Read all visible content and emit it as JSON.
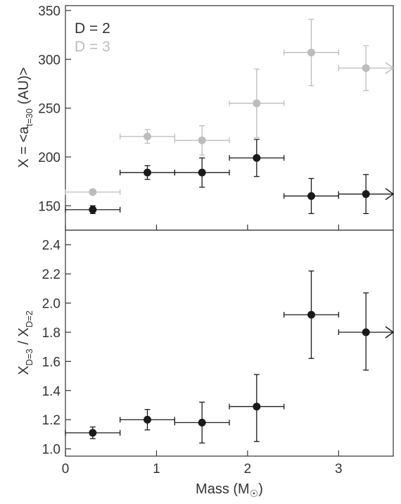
{
  "chart_data": [
    {
      "type": "scatter",
      "panel": "top",
      "xlabel": "",
      "ylabel_parts": {
        "main": "X = <a",
        "sub": "t=30",
        "tail": " (AU)>"
      },
      "ylabel": "X = <a_t=30 (AU)>",
      "xlim": [
        0,
        3.6
      ],
      "ylim": [
        125,
        355
      ],
      "yticks": [
        150,
        200,
        250,
        300,
        350
      ],
      "ytick_labels": [
        "150",
        "200",
        "250",
        "300",
        "350"
      ],
      "legend": {
        "placement": "top-left",
        "entries": [
          "D = 2",
          "D = 3"
        ]
      },
      "grid": false,
      "series": [
        {
          "name": "D = 2",
          "color": "#1a1a1a",
          "points": [
            {
              "x": 0.3,
              "xmin": 0.0,
              "xmax": 0.6,
              "y": 146,
              "ylo": 142,
              "yhi": 150
            },
            {
              "x": 0.9,
              "xmin": 0.6,
              "xmax": 1.2,
              "y": 184,
              "ylo": 177,
              "yhi": 191
            },
            {
              "x": 1.5,
              "xmin": 1.2,
              "xmax": 1.8,
              "y": 184,
              "ylo": 169,
              "yhi": 199
            },
            {
              "x": 2.1,
              "xmin": 1.8,
              "xmax": 2.4,
              "y": 199,
              "ylo": 180,
              "yhi": 218
            },
            {
              "x": 2.7,
              "xmin": 2.4,
              "xmax": 3.0,
              "y": 160,
              "ylo": 142,
              "yhi": 178
            },
            {
              "x": 3.3,
              "xmin": 3.0,
              "xmax": 3.6,
              "y": 162,
              "ylo": 142,
              "yhi": 182,
              "open_right": true
            }
          ]
        },
        {
          "name": "D = 3",
          "color": "#bcbcbc",
          "points": [
            {
              "x": 0.3,
              "xmin": 0.0,
              "xmax": 0.6,
              "y": 164,
              "ylo": 162,
              "yhi": 166
            },
            {
              "x": 0.9,
              "xmin": 0.6,
              "xmax": 1.2,
              "y": 221,
              "ylo": 214,
              "yhi": 228
            },
            {
              "x": 1.5,
              "xmin": 1.2,
              "xmax": 1.8,
              "y": 217,
              "ylo": 202,
              "yhi": 232
            },
            {
              "x": 2.1,
              "xmin": 1.8,
              "xmax": 2.4,
              "y": 255,
              "ylo": 220,
              "yhi": 290
            },
            {
              "x": 2.7,
              "xmin": 2.4,
              "xmax": 3.0,
              "y": 307,
              "ylo": 273,
              "yhi": 341
            },
            {
              "x": 3.3,
              "xmin": 3.0,
              "xmax": 3.6,
              "y": 291,
              "ylo": 268,
              "yhi": 314,
              "open_right": true
            }
          ]
        }
      ]
    },
    {
      "type": "scatter",
      "panel": "bottom",
      "xlabel_parts": {
        "main": "Mass (M",
        "sub": "☉",
        "tail": ")"
      },
      "xlabel": "Mass (M☉)",
      "ylabel_parts": {
        "a": "X",
        "a_sub": "D=3",
        "mid": " / X",
        "b_sub": "D=2"
      },
      "ylabel": "X_D=3 / X_D=2",
      "xlim": [
        0,
        3.6
      ],
      "ylim": [
        0.95,
        2.5
      ],
      "xticks": [
        0,
        1,
        2,
        3
      ],
      "xtick_labels": [
        "0",
        "1",
        "2",
        "3"
      ],
      "yticks": [
        1.0,
        1.2,
        1.4,
        1.6,
        1.8,
        2.0,
        2.2,
        2.4
      ],
      "ytick_labels": [
        "1.0",
        "1.2",
        "1.4",
        "1.6",
        "1.8",
        "2.0",
        "2.2",
        "2.4"
      ],
      "grid": false,
      "series": [
        {
          "color": "#1a1a1a",
          "points": [
            {
              "x": 0.3,
              "xmin": 0.0,
              "xmax": 0.6,
              "y": 1.11,
              "ylo": 1.07,
              "yhi": 1.15
            },
            {
              "x": 0.9,
              "xmin": 0.6,
              "xmax": 1.2,
              "y": 1.2,
              "ylo": 1.13,
              "yhi": 1.27
            },
            {
              "x": 1.5,
              "xmin": 1.2,
              "xmax": 1.8,
              "y": 1.18,
              "ylo": 1.04,
              "yhi": 1.32
            },
            {
              "x": 2.1,
              "xmin": 1.8,
              "xmax": 2.4,
              "y": 1.29,
              "ylo": 1.05,
              "yhi": 1.51
            },
            {
              "x": 2.7,
              "xmin": 2.4,
              "xmax": 3.0,
              "y": 1.92,
              "ylo": 1.62,
              "yhi": 2.22
            },
            {
              "x": 3.3,
              "xmin": 3.0,
              "xmax": 3.6,
              "y": 1.8,
              "ylo": 1.54,
              "yhi": 2.07,
              "open_right": true
            }
          ]
        }
      ]
    }
  ]
}
